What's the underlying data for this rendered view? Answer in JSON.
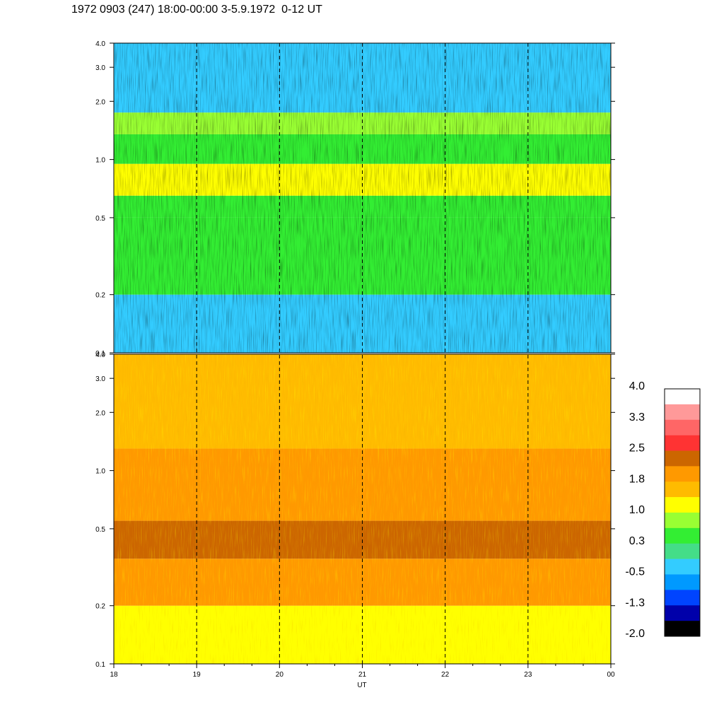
{
  "chart_data": {
    "type": "heatmap",
    "title": "1972 0903 (247) 18:00-00:00 3-5.9.1972  0-12 UT",
    "xlabel": "UT",
    "x_ticks": [
      "18",
      "19",
      "20",
      "21",
      "22",
      "23",
      "00"
    ],
    "x_range": [
      18,
      24
    ],
    "dashed_vertical_lines_at_hours": [
      19,
      20,
      21,
      22,
      23
    ],
    "panels": [
      {
        "name": "upper",
        "y_scale": "log",
        "y_range": [
          0.1,
          4.0
        ],
        "y_ticks": [
          "0.1",
          "0.2",
          "0.5",
          "1.0",
          "2.0",
          "3.0",
          "4.0"
        ],
        "dominant_bands": [
          {
            "from": 0.1,
            "to": 0.2,
            "color_level": -0.5
          },
          {
            "from": 0.2,
            "to": 0.5,
            "color_level": 0.3
          },
          {
            "from": 0.5,
            "to": 0.65,
            "color_level": 0.6
          },
          {
            "from": 0.65,
            "to": 0.95,
            "color_level": 1.3
          },
          {
            "from": 0.95,
            "to": 1.35,
            "color_level": 0.3
          },
          {
            "from": 1.35,
            "to": 1.75,
            "color_level": 0.9
          },
          {
            "from": 1.75,
            "to": 4.0,
            "color_level": -0.3
          }
        ]
      },
      {
        "name": "lower",
        "y_scale": "log",
        "y_range": [
          0.1,
          4.0
        ],
        "y_ticks": [
          "0.1",
          "0.2",
          "0.5",
          "1.0",
          "2.0",
          "3.0",
          "4.0"
        ],
        "dominant_bands": [
          {
            "from": 0.1,
            "to": 0.2,
            "color_level": 1.1
          },
          {
            "from": 0.2,
            "to": 0.35,
            "color_level": 1.8
          },
          {
            "from": 0.35,
            "to": 0.55,
            "color_level": 2.2
          },
          {
            "from": 0.55,
            "to": 1.3,
            "color_level": 1.8
          },
          {
            "from": 1.3,
            "to": 4.0,
            "color_level": 1.5
          }
        ]
      }
    ],
    "colorbar": {
      "labels": [
        "4.0",
        "3.3",
        "2.5",
        "1.8",
        "1.0",
        "0.3",
        "-0.5",
        "-1.3",
        "-2.0"
      ],
      "colors_top_to_bottom": [
        "#ffffff",
        "#ff9999",
        "#ff6666",
        "#ff3333",
        "#cc6600",
        "#ff9900",
        "#ffbb00",
        "#ffff00",
        "#99ff33",
        "#33ee33",
        "#44dd88",
        "#33ccff",
        "#0099ff",
        "#0044ff",
        "#0000aa",
        "#000000"
      ]
    }
  }
}
